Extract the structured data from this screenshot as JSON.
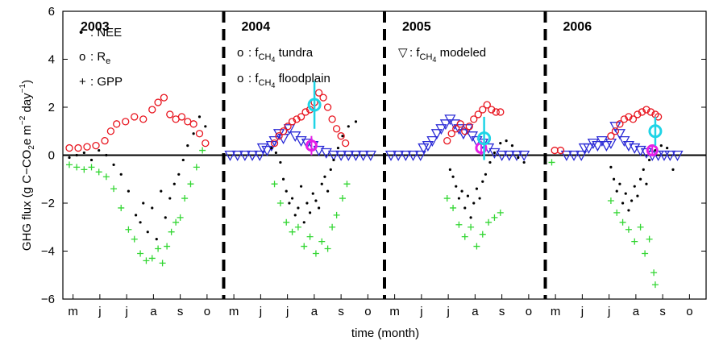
{
  "chart_data": {
    "type": "scatter",
    "title": "",
    "xlabel": "time (month)",
    "ylabel_main": "GHG flux (g C−CO",
    "ylabel_sub2": "2",
    "ylabel_mid": "e m",
    "ylabel_sup1": "−2",
    "ylabel_day": " day",
    "ylabel_sup2": "−1",
    "ylabel_close": ")",
    "ylim": [
      -6,
      6
    ],
    "y_ticks": [
      "6",
      "4",
      "2",
      "0",
      "−2",
      "−4",
      "−6"
    ],
    "y_tick_values": [
      6,
      4,
      2,
      0,
      -2,
      -4,
      -6
    ],
    "month_ticks": [
      "m",
      "j",
      "j",
      "a",
      "s",
      "o"
    ],
    "years": [
      {
        "label": "2003",
        "nee": [
          [
            0,
            -0.1
          ],
          [
            5,
            0
          ],
          [
            10,
            0.1
          ],
          [
            15,
            -0.2
          ],
          [
            20,
            0.2
          ],
          [
            25,
            0
          ],
          [
            30,
            -0.4
          ],
          [
            35,
            -0.8
          ],
          [
            40,
            -1.5
          ],
          [
            45,
            -2.5
          ],
          [
            48,
            -2.8
          ],
          [
            50,
            -2
          ],
          [
            53,
            -3.2
          ],
          [
            56,
            -2.2
          ],
          [
            59,
            -3.5
          ],
          [
            62,
            -1.5
          ],
          [
            65,
            -2.6
          ],
          [
            68,
            -1.8
          ],
          [
            71,
            -1.2
          ],
          [
            74,
            -0.8
          ],
          [
            77,
            -0.2
          ],
          [
            80,
            0.4
          ],
          [
            84,
            0.9
          ],
          [
            88,
            1.6
          ],
          [
            92,
            1.2
          ]
        ],
        "re": [
          [
            0,
            0.3
          ],
          [
            6,
            0.3
          ],
          [
            12,
            0.35
          ],
          [
            18,
            0.4
          ],
          [
            24,
            0.6
          ],
          [
            28,
            1.0
          ],
          [
            32,
            1.3
          ],
          [
            38,
            1.4
          ],
          [
            44,
            1.6
          ],
          [
            50,
            1.5
          ],
          [
            56,
            1.9
          ],
          [
            60,
            2.2
          ],
          [
            64,
            2.4
          ],
          [
            68,
            1.7
          ],
          [
            72,
            1.5
          ],
          [
            76,
            1.6
          ],
          [
            80,
            1.4
          ],
          [
            84,
            1.3
          ],
          [
            88,
            0.9
          ],
          [
            92,
            0.5
          ]
        ],
        "gpp": [
          [
            0,
            -0.4
          ],
          [
            5,
            -0.5
          ],
          [
            10,
            -0.6
          ],
          [
            15,
            -0.5
          ],
          [
            20,
            -0.7
          ],
          [
            25,
            -0.9
          ],
          [
            30,
            -1.4
          ],
          [
            35,
            -2.2
          ],
          [
            40,
            -3.1
          ],
          [
            44,
            -3.5
          ],
          [
            48,
            -4.1
          ],
          [
            52,
            -4.4
          ],
          [
            56,
            -4.3
          ],
          [
            60,
            -3.9
          ],
          [
            63,
            -4.5
          ],
          [
            66,
            -3.8
          ],
          [
            69,
            -3.2
          ],
          [
            72,
            -2.8
          ],
          [
            75,
            -2.6
          ],
          [
            78,
            -1.8
          ],
          [
            82,
            -1.2
          ],
          [
            86,
            -0.5
          ],
          [
            90,
            0.2
          ]
        ],
        "ch4_tundra": [],
        "ch4_floodplain": [],
        "ch4_model": []
      },
      {
        "label": "2004",
        "nee": [
          [
            28,
            0.3
          ],
          [
            31,
            0.1
          ],
          [
            34,
            -0.3
          ],
          [
            36,
            -1.0
          ],
          [
            38,
            -1.5
          ],
          [
            40,
            -2.0
          ],
          [
            42,
            -1.8
          ],
          [
            44,
            -2.5
          ],
          [
            46,
            -2.2
          ],
          [
            48,
            -1.3
          ],
          [
            50,
            -2.8
          ],
          [
            52,
            -2.0
          ],
          [
            54,
            -2.4
          ],
          [
            56,
            -1.6
          ],
          [
            58,
            -1.9
          ],
          [
            60,
            -2.2
          ],
          [
            62,
            -1.2
          ],
          [
            64,
            -0.9
          ],
          [
            66,
            -1.5
          ],
          [
            68,
            -0.6
          ],
          [
            70,
            -0.2
          ],
          [
            73,
            0.3
          ],
          [
            76,
            0.8
          ],
          [
            80,
            1.2
          ],
          [
            85,
            1.4
          ]
        ],
        "re": [
          [
            30,
            0.5
          ],
          [
            33,
            0.8
          ],
          [
            36,
            1.0
          ],
          [
            39,
            1.2
          ],
          [
            42,
            1.4
          ],
          [
            45,
            1.5
          ],
          [
            48,
            1.6
          ],
          [
            51,
            1.8
          ],
          [
            54,
            1.9
          ],
          [
            57,
            2.2
          ],
          [
            60,
            2.6
          ],
          [
            63,
            2.4
          ],
          [
            66,
            2.0
          ],
          [
            69,
            1.5
          ],
          [
            72,
            1.1
          ],
          [
            75,
            0.8
          ],
          [
            78,
            0.5
          ]
        ],
        "gpp": [
          [
            30,
            -1.2
          ],
          [
            34,
            -2.0
          ],
          [
            38,
            -2.8
          ],
          [
            42,
            -3.2
          ],
          [
            46,
            -3.0
          ],
          [
            50,
            -3.8
          ],
          [
            54,
            -3.4
          ],
          [
            58,
            -4.1
          ],
          [
            62,
            -3.6
          ],
          [
            66,
            -3.9
          ],
          [
            69,
            -3.0
          ],
          [
            72,
            -2.5
          ],
          [
            76,
            -1.8
          ],
          [
            79,
            -1.2
          ]
        ],
        "ch4_tundra": [
          [
            55,
            0.4,
            0.4
          ]
        ],
        "ch4_floodplain": [
          [
            57,
            2.1,
            1.0
          ]
        ],
        "ch4_model": [
          [
            0,
            0
          ],
          [
            5,
            0
          ],
          [
            10,
            0
          ],
          [
            15,
            0
          ],
          [
            20,
            0
          ],
          [
            22,
            0.3
          ],
          [
            25,
            0.2
          ],
          [
            28,
            0.4
          ],
          [
            30,
            0.6
          ],
          [
            33,
            0.9
          ],
          [
            36,
            0.7
          ],
          [
            40,
            1.1
          ],
          [
            44,
            0.8
          ],
          [
            48,
            0.6
          ],
          [
            52,
            0.5
          ],
          [
            56,
            0.4
          ],
          [
            60,
            0.2
          ],
          [
            65,
            0.1
          ],
          [
            70,
            0
          ],
          [
            75,
            0
          ],
          [
            80,
            0
          ],
          [
            85,
            0
          ],
          [
            90,
            0
          ],
          [
            95,
            0
          ]
        ]
      },
      {
        "label": "2005",
        "nee": [
          [
            40,
            -0.6
          ],
          [
            42,
            -0.9
          ],
          [
            44,
            -1.3
          ],
          [
            46,
            -1.8
          ],
          [
            48,
            -1.5
          ],
          [
            50,
            -2.2
          ],
          [
            52,
            -1.7
          ],
          [
            54,
            -2.6
          ],
          [
            56,
            -2.0
          ],
          [
            58,
            -1.4
          ],
          [
            60,
            -1.8
          ],
          [
            62,
            -1.1
          ],
          [
            64,
            -0.8
          ],
          [
            67,
            -0.3
          ],
          [
            70,
            0.1
          ],
          [
            74,
            0.5
          ],
          [
            78,
            0.6
          ],
          [
            82,
            0.4
          ],
          [
            86,
            -0.1
          ],
          [
            90,
            -0.3
          ]
        ],
        "re": [
          [
            38,
            0.6
          ],
          [
            41,
            0.9
          ],
          [
            44,
            1.1
          ],
          [
            47,
            1.3
          ],
          [
            50,
            1.0
          ],
          [
            53,
            1.2
          ],
          [
            56,
            1.5
          ],
          [
            59,
            1.7
          ],
          [
            62,
            1.9
          ],
          [
            65,
            2.1
          ],
          [
            68,
            1.9
          ],
          [
            71,
            1.8
          ],
          [
            74,
            1.8
          ]
        ],
        "gpp": [
          [
            38,
            -1.8
          ],
          [
            42,
            -2.2
          ],
          [
            46,
            -2.9
          ],
          [
            50,
            -3.4
          ],
          [
            54,
            -3.0
          ],
          [
            58,
            -3.8
          ],
          [
            62,
            -3.3
          ],
          [
            66,
            -2.8
          ],
          [
            70,
            -2.6
          ],
          [
            74,
            -2.4
          ]
        ],
        "ch4_tundra": [
          [
            61,
            0.3,
            0.3
          ]
        ],
        "ch4_floodplain": [
          [
            63,
            0.7,
            0.9
          ]
        ],
        "ch4_model": [
          [
            0,
            0
          ],
          [
            5,
            0
          ],
          [
            10,
            0
          ],
          [
            15,
            0
          ],
          [
            20,
            0
          ],
          [
            22,
            0.3
          ],
          [
            25,
            0.4
          ],
          [
            28,
            0.6
          ],
          [
            31,
            0.9
          ],
          [
            34,
            1.1
          ],
          [
            37,
            1.3
          ],
          [
            40,
            1.5
          ],
          [
            43,
            1.3
          ],
          [
            46,
            1.1
          ],
          [
            49,
            0.9
          ],
          [
            52,
            1.1
          ],
          [
            55,
            0.8
          ],
          [
            58,
            0.6
          ],
          [
            62,
            0.5
          ],
          [
            66,
            0.3
          ],
          [
            70,
            0.1
          ],
          [
            75,
            0
          ],
          [
            80,
            0
          ],
          [
            85,
            0
          ],
          [
            90,
            0
          ]
        ]
      },
      {
        "label": "2006",
        "nee": [
          [
            40,
            -0.5
          ],
          [
            42,
            -1.0
          ],
          [
            44,
            -1.5
          ],
          [
            46,
            -1.2
          ],
          [
            48,
            -2.0
          ],
          [
            50,
            -1.6
          ],
          [
            52,
            -2.3
          ],
          [
            54,
            -1.9
          ],
          [
            56,
            -1.3
          ],
          [
            58,
            -1.7
          ],
          [
            60,
            -1.0
          ],
          [
            62,
            -0.6
          ],
          [
            64,
            -1.2
          ],
          [
            66,
            -0.2
          ],
          [
            70,
            0.2
          ],
          [
            74,
            0.4
          ],
          [
            78,
            0.3
          ],
          [
            82,
            -0.6
          ]
        ],
        "re": [
          [
            2,
            0.2
          ],
          [
            6,
            0.2
          ],
          [
            40,
            0.8
          ],
          [
            43,
            1.0
          ],
          [
            46,
            1.3
          ],
          [
            49,
            1.5
          ],
          [
            52,
            1.6
          ],
          [
            55,
            1.5
          ],
          [
            58,
            1.7
          ],
          [
            61,
            1.8
          ],
          [
            64,
            1.9
          ],
          [
            67,
            1.8
          ],
          [
            70,
            1.7
          ],
          [
            72,
            1.6
          ]
        ],
        "gpp": [
          [
            0,
            -0.3
          ],
          [
            40,
            -1.9
          ],
          [
            44,
            -2.4
          ],
          [
            48,
            -2.8
          ],
          [
            52,
            -3.1
          ],
          [
            56,
            -3.6
          ],
          [
            60,
            -3.0
          ],
          [
            63,
            -4.1
          ],
          [
            66,
            -3.5
          ],
          [
            69,
            -4.9
          ],
          [
            70,
            -5.4
          ]
        ],
        "ch4_tundra": [
          [
            68,
            0.2,
            0.2
          ]
        ],
        "ch4_floodplain": [
          [
            70,
            1.0,
            0.6
          ]
        ],
        "ch4_model": [
          [
            10,
            0
          ],
          [
            15,
            0
          ],
          [
            20,
            0
          ],
          [
            22,
            0.3
          ],
          [
            25,
            0.3
          ],
          [
            28,
            0.5
          ],
          [
            31,
            0.4
          ],
          [
            34,
            0.6
          ],
          [
            37,
            0.4
          ],
          [
            40,
            0.5
          ],
          [
            43,
            1.2
          ],
          [
            46,
            0.9
          ],
          [
            49,
            0.6
          ],
          [
            52,
            0.4
          ],
          [
            56,
            0.3
          ],
          [
            60,
            0.2
          ],
          [
            64,
            0.1
          ],
          [
            68,
            0
          ],
          [
            72,
            0
          ],
          [
            76,
            0
          ],
          [
            80,
            0
          ],
          [
            85,
            0
          ]
        ]
      }
    ],
    "legend": [
      {
        "symbol": "•",
        "text": ": NEE",
        "color": "#000000"
      },
      {
        "symbol": "o",
        "text": ": R",
        "sub": "e",
        "color": "#e8141e"
      },
      {
        "symbol": "+",
        "text": ": GPP",
        "color": "#33d633"
      },
      {
        "symbol": "o",
        "text": ": f",
        "sub": "CH",
        "sub2": "4",
        "text2": " tundra",
        "color": "#e620e6"
      },
      {
        "symbol": "o",
        "text": ": f",
        "sub": "CH",
        "sub2": "4",
        "text2": " floodplain",
        "color": "#1fd4e6"
      },
      {
        "symbol": "▽",
        "text": ": f",
        "sub": "CH",
        "sub2": "4",
        "text2": " modeled",
        "color": "#2b2bd6"
      }
    ],
    "colors": {
      "nee": "#000000",
      "re": "#e8141e",
      "gpp": "#33d633",
      "tundra": "#e620e6",
      "floodplain": "#1fd4e6",
      "model": "#2b2bd6"
    }
  }
}
